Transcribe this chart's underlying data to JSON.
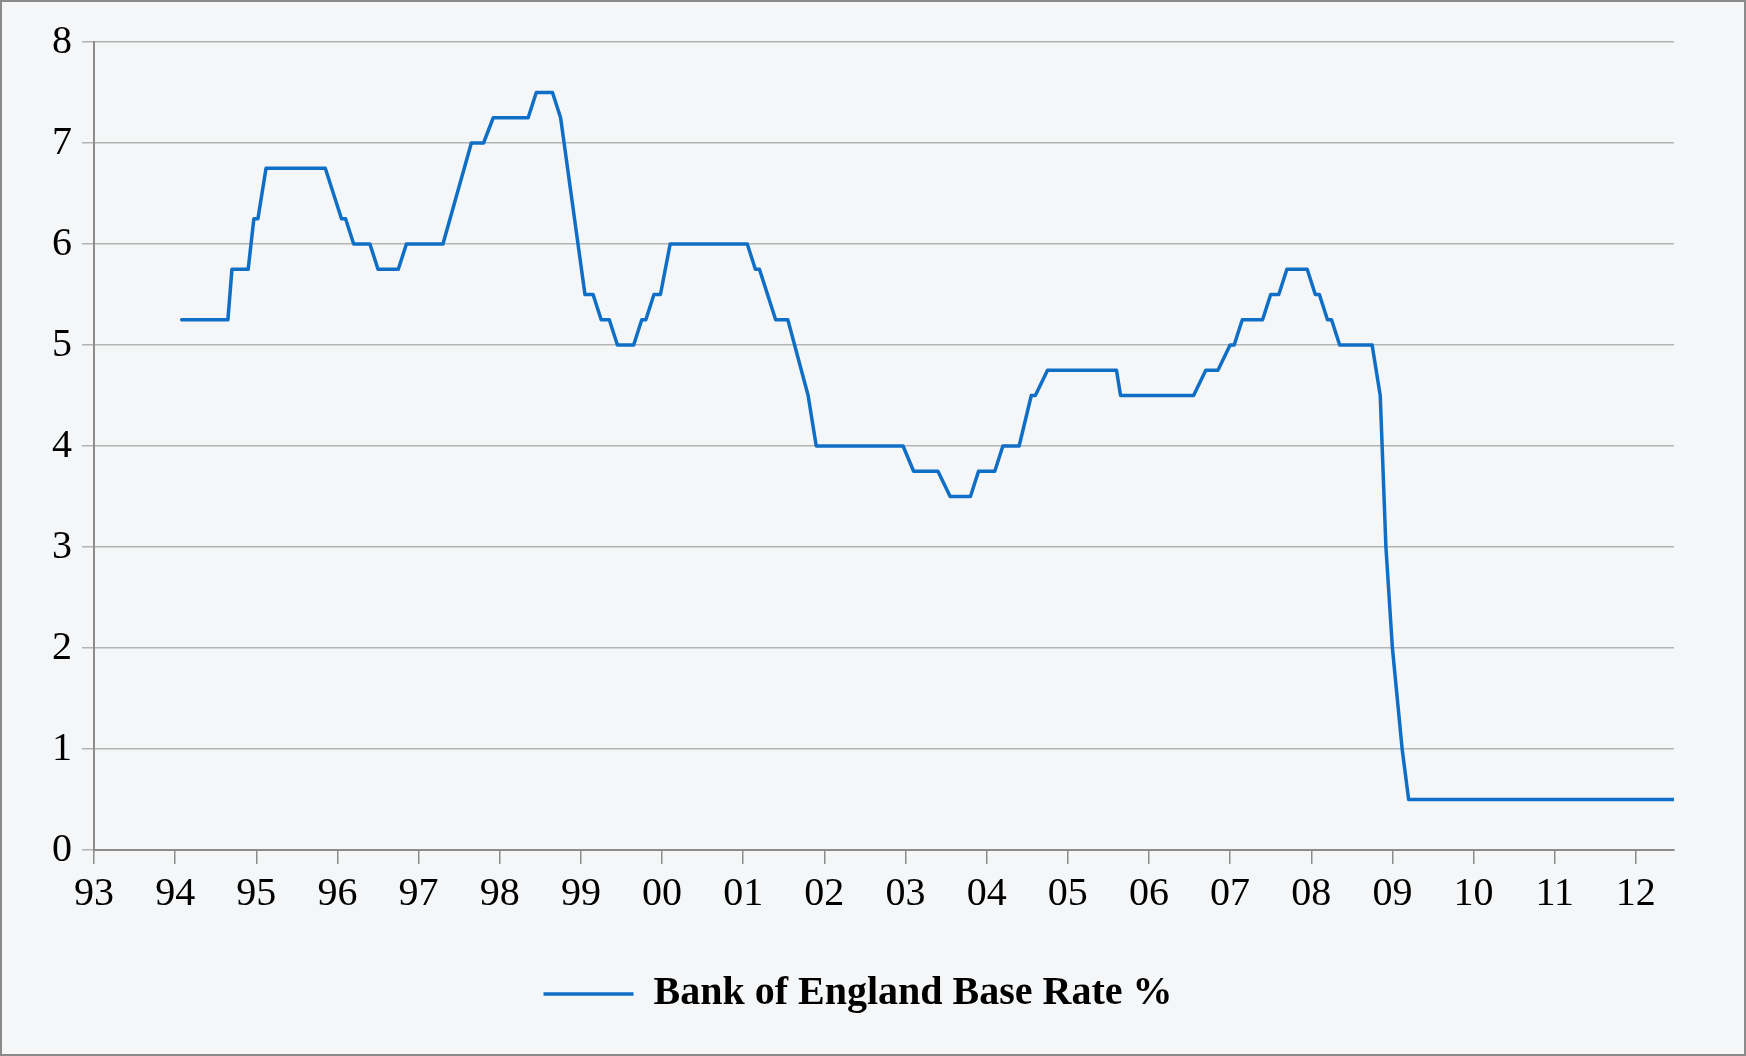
{
  "chart_data": {
    "type": "line",
    "legend": "bottom",
    "grid": "y",
    "marker": "none",
    "line_style": "solid",
    "xlim": [
      1993,
      2012.47
    ],
    "ylim": [
      0,
      8
    ],
    "yticks": [
      0,
      1,
      2,
      3,
      4,
      5,
      6,
      7,
      8
    ],
    "xticks": [
      {
        "value": 1993,
        "label": "93"
      },
      {
        "value": 1994,
        "label": "94"
      },
      {
        "value": 1995,
        "label": "95"
      },
      {
        "value": 1996,
        "label": "96"
      },
      {
        "value": 1997,
        "label": "97"
      },
      {
        "value": 1998,
        "label": "98"
      },
      {
        "value": 1999,
        "label": "99"
      },
      {
        "value": 2000,
        "label": "00"
      },
      {
        "value": 2001,
        "label": "01"
      },
      {
        "value": 2002,
        "label": "02"
      },
      {
        "value": 2003,
        "label": "03"
      },
      {
        "value": 2004,
        "label": "04"
      },
      {
        "value": 2005,
        "label": "05"
      },
      {
        "value": 2006,
        "label": "06"
      },
      {
        "value": 2007,
        "label": "07"
      },
      {
        "value": 2008,
        "label": "08"
      },
      {
        "value": 2009,
        "label": "09"
      },
      {
        "value": 2010,
        "label": "10"
      },
      {
        "value": 2011,
        "label": "11"
      },
      {
        "value": 2012,
        "label": "12"
      }
    ],
    "series": [
      {
        "name": "Bank of England Base Rate %",
        "color": "#0f6fc6",
        "x": [
          1994.08,
          1994.65,
          1994.7,
          1994.9,
          1994.97,
          1995.02,
          1995.12,
          1995.85,
          1996.05,
          1996.1,
          1996.2,
          1996.4,
          1996.5,
          1996.75,
          1996.85,
          1997.3,
          1997.65,
          1997.8,
          1997.92,
          1998.35,
          1998.45,
          1998.65,
          1998.75,
          1999.05,
          1999.15,
          1999.25,
          1999.35,
          1999.45,
          1999.65,
          1999.75,
          1999.8,
          1999.9,
          1999.98,
          2000.1,
          2001.05,
          2001.15,
          2001.2,
          2001.4,
          2001.55,
          2001.8,
          2001.9,
          2002.97,
          2003.1,
          2003.4,
          2003.55,
          2003.8,
          2003.9,
          2004.1,
          2004.2,
          2004.4,
          2004.55,
          2004.6,
          2004.75,
          2005.6,
          2005.65,
          2006.55,
          2006.7,
          2006.85,
          2007.0,
          2007.05,
          2007.15,
          2007.4,
          2007.5,
          2007.6,
          2007.7,
          2007.95,
          2008.05,
          2008.1,
          2008.2,
          2008.25,
          2008.35,
          2008.75,
          2008.85,
          2008.92,
          2009.0,
          2009.12,
          2009.2,
          2012.47
        ],
        "values": [
          5.25,
          5.25,
          5.75,
          5.75,
          6.25,
          6.25,
          6.75,
          6.75,
          6.25,
          6.25,
          6.0,
          6.0,
          5.75,
          5.75,
          6.0,
          6.0,
          7.0,
          7.0,
          7.25,
          7.25,
          7.5,
          7.5,
          7.25,
          5.5,
          5.5,
          5.25,
          5.25,
          5.0,
          5.0,
          5.25,
          5.25,
          5.5,
          5.5,
          6.0,
          6.0,
          5.75,
          5.75,
          5.25,
          5.25,
          4.5,
          4.0,
          4.0,
          3.75,
          3.75,
          3.5,
          3.5,
          3.75,
          3.75,
          4.0,
          4.0,
          4.5,
          4.5,
          4.75,
          4.75,
          4.5,
          4.5,
          4.75,
          4.75,
          5.0,
          5.0,
          5.25,
          5.25,
          5.5,
          5.5,
          5.75,
          5.75,
          5.5,
          5.5,
          5.25,
          5.25,
          5.0,
          5.0,
          4.5,
          3.0,
          2.0,
          1.0,
          0.5,
          0.5
        ]
      }
    ]
  }
}
